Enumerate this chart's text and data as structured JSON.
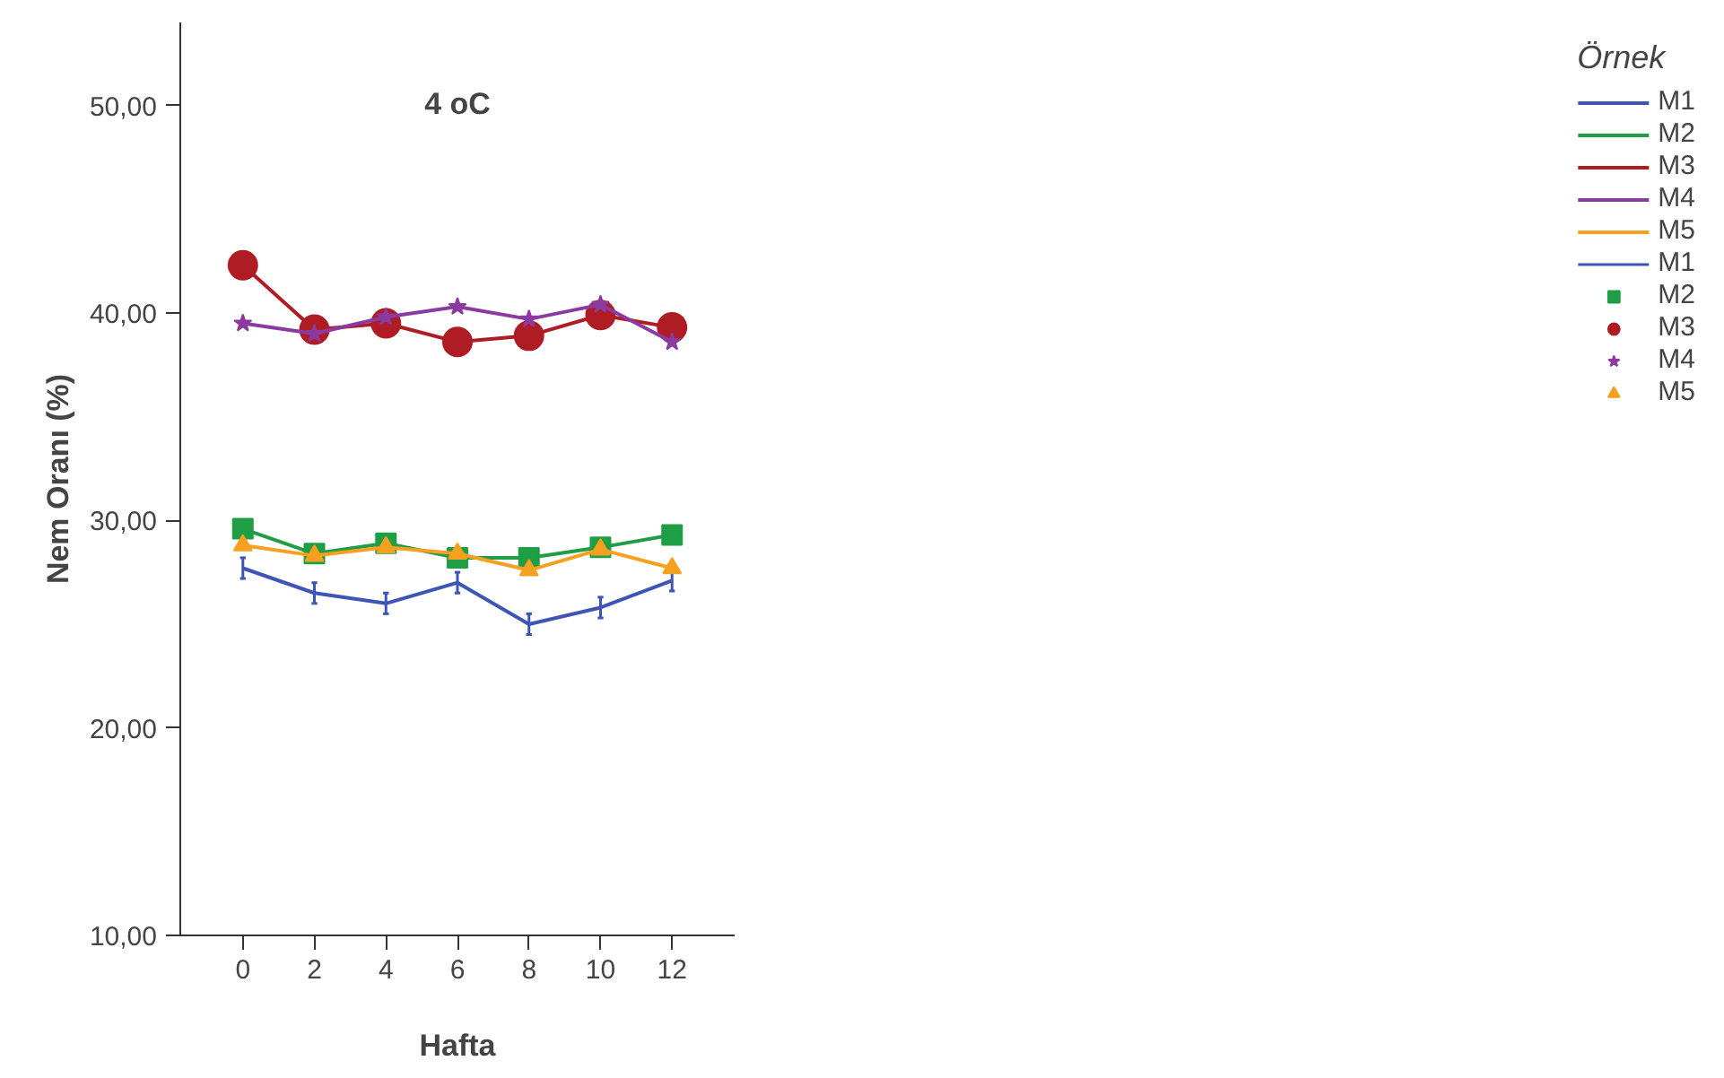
{
  "chart_data": {
    "type": "line",
    "title": "4 oC",
    "xlabel": "Hafta",
    "ylabel": "Nem Oranı (%)",
    "legend_title": "Örnek",
    "legend": "right",
    "x": [
      0,
      2,
      4,
      6,
      8,
      10,
      12
    ],
    "xlim": [
      -1.75,
      13.75
    ],
    "xticks": [
      0,
      2,
      4,
      6,
      8,
      10,
      12
    ],
    "ylim": [
      10,
      54
    ],
    "yticks": [
      {
        "value": 10,
        "label": "10,00"
      },
      {
        "value": 20,
        "label": "20,00"
      },
      {
        "value": 30,
        "label": "30,00"
      },
      {
        "value": 40,
        "label": "40,00"
      },
      {
        "value": 50,
        "label": "50,00"
      }
    ],
    "series": [
      {
        "name": "M1",
        "color": "#3f55b5",
        "marker": "none",
        "values": [
          27.7,
          26.5,
          26.0,
          27.0,
          25.0,
          25.8,
          27.1
        ],
        "errors": [
          0.5,
          0.5,
          0.5,
          0.5,
          0.5,
          0.5,
          0.5
        ]
      },
      {
        "name": "M2",
        "color": "#1f9e45",
        "marker": "square",
        "values": [
          29.6,
          28.4,
          28.9,
          28.2,
          28.2,
          28.7,
          29.3
        ]
      },
      {
        "name": "M3",
        "color": "#b01c23",
        "marker": "circle",
        "values": [
          42.3,
          39.2,
          39.5,
          38.6,
          38.9,
          39.9,
          39.3
        ]
      },
      {
        "name": "M4",
        "color": "#8b3aa0",
        "marker": "star",
        "values": [
          39.5,
          39.0,
          39.8,
          40.3,
          39.7,
          40.4,
          38.6
        ]
      },
      {
        "name": "M5",
        "color": "#f5a020",
        "marker": "triangle",
        "values": [
          28.8,
          28.3,
          28.7,
          28.4,
          27.6,
          28.6,
          27.7
        ]
      }
    ]
  }
}
